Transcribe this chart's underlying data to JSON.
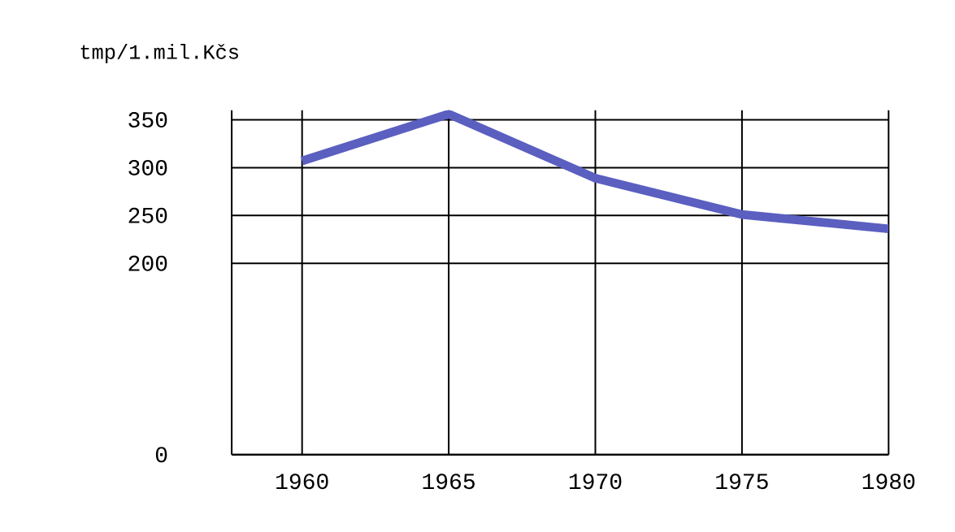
{
  "chart_data": {
    "type": "line",
    "ylabel": "tmp/1.mil.Kčs",
    "x": [
      1960,
      1965,
      1970,
      1975,
      1980
    ],
    "series": [
      {
        "color": "#5a5fc0",
        "values": [
          307,
          356,
          289,
          251,
          236
        ]
      }
    ],
    "xlim": [
      1957.6,
      1980
    ],
    "xticks": [
      1960,
      1965,
      1970,
      1975,
      1980
    ],
    "ylim": [
      0,
      360
    ],
    "yticks": [
      0,
      200,
      250,
      300,
      350
    ],
    "grid": true,
    "marker": "none",
    "line_style": "solid"
  }
}
